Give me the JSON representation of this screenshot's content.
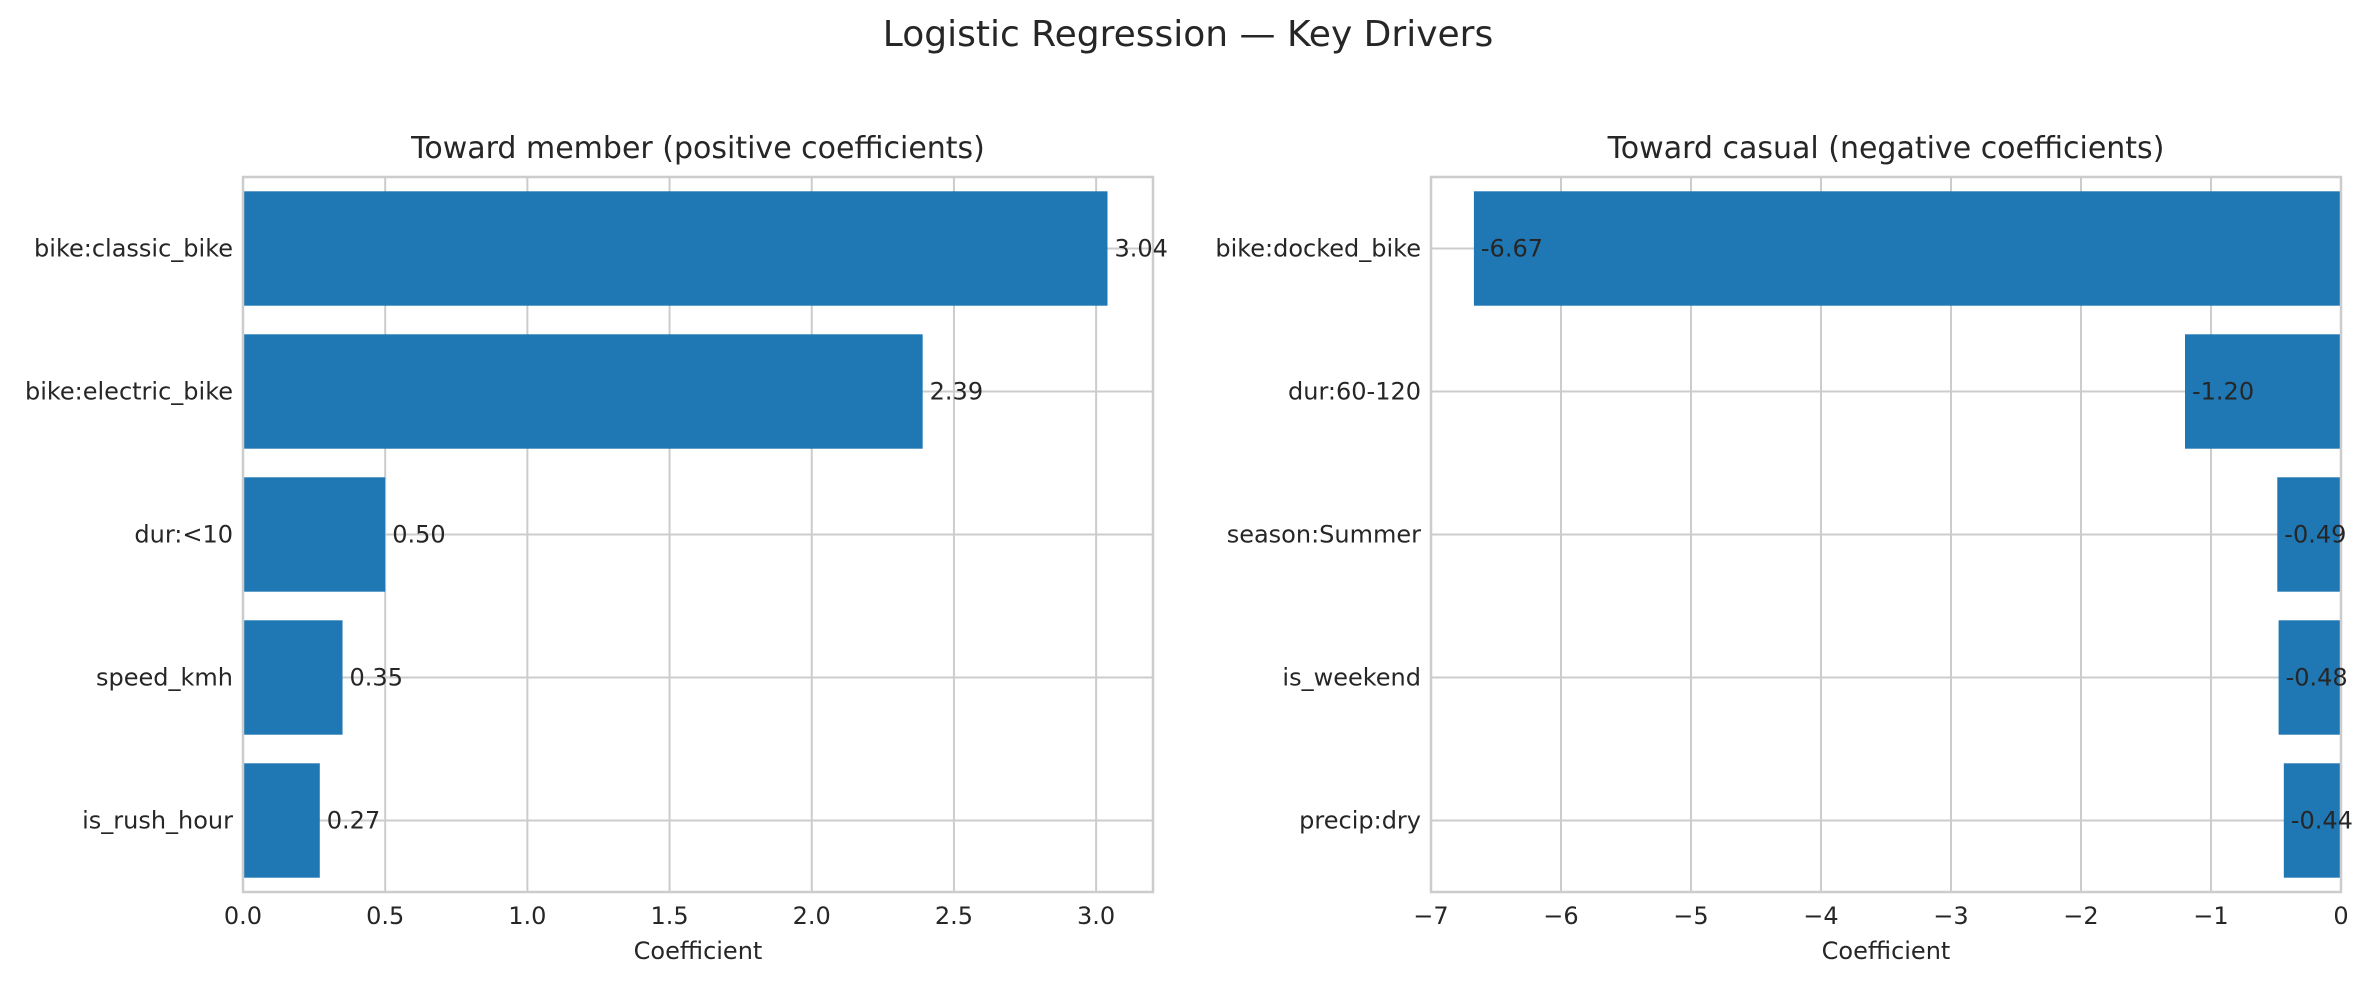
{
  "figure": {
    "title": "Logistic Regression — Key Drivers"
  },
  "colors": {
    "bar": "#1f77b4",
    "grid": "#cccccc",
    "text": "#262626",
    "background": "#ffffff"
  },
  "chart_data": [
    {
      "type": "bar",
      "orientation": "horizontal",
      "title": "Toward member (positive coefficients)",
      "xlabel": "Coefficient",
      "ylabel": "",
      "xlim": [
        0,
        3.2
      ],
      "xticks": [
        0.0,
        0.5,
        1.0,
        1.5,
        2.0,
        2.5,
        3.0
      ],
      "xtick_labels": [
        "0.0",
        "0.5",
        "1.0",
        "1.5",
        "2.0",
        "2.5",
        "3.0"
      ],
      "grid": true,
      "categories": [
        "bike:classic_bike",
        "bike:electric_bike",
        "dur:<10",
        "speed_kmh",
        "is_rush_hour"
      ],
      "values": [
        3.04,
        2.39,
        0.5,
        0.35,
        0.27
      ],
      "value_labels": [
        "3.04",
        "2.39",
        "0.50",
        "0.35",
        "0.27"
      ]
    },
    {
      "type": "bar",
      "orientation": "horizontal",
      "title": "Toward casual (negative coefficients)",
      "xlabel": "Coefficient",
      "ylabel": "",
      "xlim": [
        -7,
        0
      ],
      "xticks": [
        -7,
        -6,
        -5,
        -4,
        -3,
        -2,
        -1,
        0
      ],
      "xtick_labels": [
        "−7",
        "−6",
        "−5",
        "−4",
        "−3",
        "−2",
        "−1",
        "0"
      ],
      "grid": true,
      "categories": [
        "bike:docked_bike",
        "dur:60-120",
        "season:Summer",
        "is_weekend",
        "precip:dry"
      ],
      "values": [
        -6.67,
        -1.2,
        -0.49,
        -0.48,
        -0.44
      ],
      "value_labels": [
        "-6.67",
        "-1.20",
        "-0.49",
        "-0.48",
        "-0.44"
      ]
    }
  ]
}
